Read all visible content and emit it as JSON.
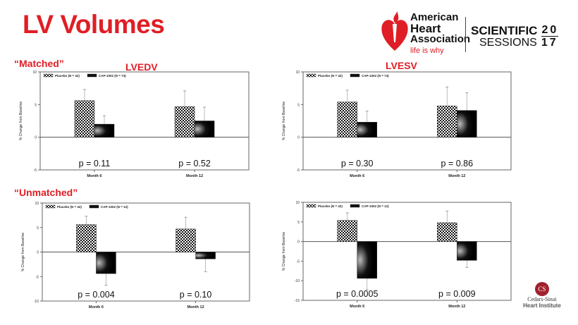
{
  "slide_title": "LV Volumes",
  "sections": {
    "matched": "“Matched”",
    "unmatched": "“Unmatched”",
    "lvedv": "LVEDV",
    "lvesv": "LVESV"
  },
  "logos": {
    "aha_lines": [
      "American",
      "Heart",
      "Association"
    ],
    "aha_tagline": "life is why",
    "sessions_line1": "SCIENTIFIC",
    "sessions_line2": "SESSIONS",
    "year_top": "20",
    "year_bottom": "17",
    "cedars": "Cedars-Sinai",
    "cedars_sub": "Heart Institute",
    "cedars_mark": "CS"
  },
  "colors": {
    "accent": "#e01e25"
  },
  "chart_data": [
    {
      "type": "bar",
      "id": "lvedv-matched",
      "ylabel": "% Change from Baseline",
      "ylim": [
        -5,
        10
      ],
      "yticks": [
        10,
        5,
        0,
        -5
      ],
      "categories": [
        "Month 6",
        "Month 12"
      ],
      "series": [
        {
          "name": "Placebo (N = 42)",
          "values": [
            5.6,
            4.7
          ],
          "error": [
            1.7,
            2.4
          ]
        },
        {
          "name": "CAP-1002 (N = 74)",
          "values": [
            2.0,
            2.5
          ],
          "error": [
            1.3,
            2.1
          ]
        }
      ],
      "annotations": [
        "p = 0.11",
        "p = 0.52"
      ]
    },
    {
      "type": "bar",
      "id": "lvedv-unmatched",
      "ylabel": "% Change from Baseline",
      "ylim": [
        -10,
        10
      ],
      "yticks": [
        10,
        5,
        0,
        -5,
        -10
      ],
      "categories": [
        "Month 6",
        "Month 12"
      ],
      "series": [
        {
          "name": "Placebo (N = 42)",
          "values": [
            5.6,
            4.7
          ],
          "error": [
            1.7,
            2.4
          ]
        },
        {
          "name": "CAP-1002 (N = 12)",
          "values": [
            -4.4,
            -1.4
          ],
          "error": [
            2.4,
            2.6
          ]
        }
      ],
      "annotations": [
        "p = 0.004",
        "p = 0.10"
      ]
    },
    {
      "type": "bar",
      "id": "lvesv-matched",
      "ylabel": "% Change from Baseline",
      "ylim": [
        -5,
        10
      ],
      "yticks": [
        10,
        5,
        0,
        -5
      ],
      "categories": [
        "Month 6",
        "Month 12"
      ],
      "series": [
        {
          "name": "Placebo (N = 42)",
          "values": [
            5.4,
            4.8
          ],
          "error": [
            1.8,
            2.9
          ]
        },
        {
          "name": "CAP-1002 (N = 74)",
          "values": [
            2.3,
            4.1
          ],
          "error": [
            1.7,
            2.7
          ]
        }
      ],
      "annotations": [
        "p = 0.30",
        "p = 0.86"
      ]
    },
    {
      "type": "bar",
      "id": "lvesv-unmatched",
      "ylabel": "% Change from Baseline",
      "ylim": [
        -15,
        10
      ],
      "yticks": [
        10,
        5,
        0,
        -5,
        -10,
        -15
      ],
      "categories": [
        "Month 6",
        "Month 12"
      ],
      "series": [
        {
          "name": "Placebo (N = 42)",
          "values": [
            5.4,
            4.8
          ],
          "error": [
            1.9,
            3.0
          ]
        },
        {
          "name": "CAP-1002 (N = 12)",
          "values": [
            -9.4,
            -4.8
          ],
          "error": [
            2.9,
            1.8
          ]
        }
      ],
      "annotations": [
        "p = 0.0005",
        "p = 0.009"
      ]
    }
  ]
}
